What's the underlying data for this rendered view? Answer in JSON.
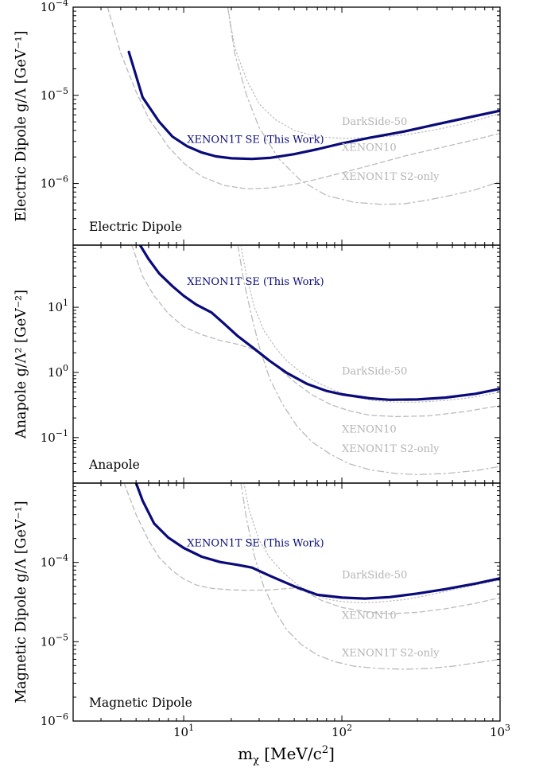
{
  "figure": {
    "xlabel_main": "m",
    "xlabel_sub": "χ",
    "xlabel_unit": " [MeV/c",
    "xlabel_exp": "2",
    "xlabel_end": "]"
  },
  "chart_data": [
    {
      "type": "line",
      "panel_label": "Electric Dipole",
      "ylabel": "Electric Dipole g/Λ [GeV⁻¹]",
      "xscale": "log",
      "yscale": "log",
      "xlim": [
        2,
        1000
      ],
      "ylim": [
        2e-07,
        0.0001
      ],
      "grid": false,
      "x_ticks": [
        {
          "v": 10,
          "e": "1"
        },
        {
          "v": 100,
          "e": "2"
        },
        {
          "v": 1000,
          "e": "3"
        }
      ],
      "y_ticks": [
        {
          "v": 1e-06,
          "e": "−6"
        },
        {
          "v": 1e-05,
          "e": "−5"
        },
        {
          "v": 0.0001,
          "e": "−4"
        }
      ],
      "series": [
        {
          "name": "XENON1T SE (This Work)",
          "style": "thick",
          "color": "#0a0a7a",
          "label_at": [
            10.5,
            2.9e-06
          ],
          "x": [
            4.5,
            5.5,
            7,
            8.5,
            10.5,
            13,
            16,
            20,
            27,
            35,
            50,
            70,
            100,
            150,
            250,
            400,
            600,
            1000
          ],
          "y": [
            3.1e-05,
            9.5e-06,
            5e-06,
            3.4e-06,
            2.65e-06,
            2.25e-06,
            2.03e-06,
            1.93e-06,
            1.9e-06,
            1.95e-06,
            2.15e-06,
            2.45e-06,
            2.85e-06,
            3.3e-06,
            3.9e-06,
            4.7e-06,
            5.5e-06,
            6.7e-06
          ]
        },
        {
          "name": "DarkSide-50",
          "style": "dotted",
          "color": "#bbbbbb",
          "label_at": [
            100,
            4.6e-06
          ],
          "x": [
            19,
            21,
            25,
            30,
            38,
            50,
            70,
            100,
            150,
            250,
            400,
            600,
            1000
          ],
          "y": [
            0.0001,
            3.5e-05,
            1.5e-05,
            8e-06,
            5.3e-06,
            4e-06,
            3.4e-06,
            3.25e-06,
            3.3e-06,
            3.55e-06,
            4.1e-06,
            4.8e-06,
            6.2e-06
          ]
        },
        {
          "name": "XENON10",
          "style": "dashed",
          "color": "#bbbbbb",
          "label_at": [
            100,
            2.35e-06
          ],
          "x": [
            3.3,
            4,
            5,
            6,
            8,
            10,
            13,
            18,
            25,
            35,
            50,
            70,
            100,
            150,
            250,
            400,
            600,
            1000
          ],
          "y": [
            0.0001,
            3e-05,
            1.1e-05,
            5.5e-06,
            2.6e-06,
            1.7e-06,
            1.2e-06,
            9.5e-07,
            8.7e-07,
            8.9e-07,
            9.8e-07,
            1.12e-06,
            1.32e-06,
            1.6e-06,
            2.05e-06,
            2.5e-06,
            2.95e-06,
            3.7e-06
          ]
        },
        {
          "name": "XENON1T S2-only",
          "style": "dashdot",
          "color": "#bbbbbb",
          "label_at": [
            100,
            1.1e-06
          ],
          "x": [
            19,
            21,
            25,
            30,
            40,
            55,
            80,
            120,
            180,
            250,
            350,
            500,
            700,
            1000
          ],
          "y": [
            0.0001,
            3e-05,
            1e-05,
            4.3e-06,
            1.9e-06,
            1.08e-06,
            7.3e-07,
            6.1e-07,
            5.8e-07,
            5.9e-07,
            6.5e-07,
            7.4e-07,
            8.5e-07,
            1.05e-06
          ]
        }
      ]
    },
    {
      "type": "line",
      "panel_label": "Anapole",
      "ylabel": "Anapole g/Λ² [GeV⁻²]",
      "xscale": "log",
      "yscale": "log",
      "xlim": [
        2,
        1000
      ],
      "ylim": [
        0.02,
        90
      ],
      "grid": false,
      "x_ticks": [
        {
          "v": 10,
          "e": "1"
        },
        {
          "v": 100,
          "e": "2"
        },
        {
          "v": 1000,
          "e": "3"
        }
      ],
      "y_ticks": [
        {
          "v": 0.1,
          "e": "−1"
        },
        {
          "v": 1,
          "e": "0"
        },
        {
          "v": 10,
          "e": "1"
        }
      ],
      "series": [
        {
          "name": "XENON1T SE (This Work)",
          "style": "thick",
          "color": "#0a0a7a",
          "label_at": [
            10.5,
            22
          ],
          "x": [
            5.3,
            6,
            7,
            8.5,
            10,
            12,
            15,
            18,
            22,
            28,
            35,
            45,
            60,
            80,
            100,
            150,
            200,
            300,
            450,
            700,
            1000
          ],
          "y": [
            90,
            55,
            33,
            21,
            15,
            11,
            8.3,
            5.6,
            3.6,
            2.3,
            1.5,
            0.98,
            0.67,
            0.52,
            0.46,
            0.4,
            0.38,
            0.385,
            0.41,
            0.47,
            0.56
          ]
        },
        {
          "name": "DarkSide-50",
          "style": "dotted",
          "color": "#bbbbbb",
          "label_at": [
            100,
            0.93
          ],
          "x": [
            23,
            25,
            28,
            32,
            38,
            45,
            55,
            70,
            90,
            120,
            160,
            220,
            300,
            450,
            700,
            1000
          ],
          "y": [
            90,
            30,
            10,
            4.5,
            2.4,
            1.5,
            1.0,
            0.7,
            0.53,
            0.42,
            0.37,
            0.35,
            0.35,
            0.37,
            0.42,
            0.5
          ]
        },
        {
          "name": "XENON10",
          "style": "dashed",
          "color": "#bbbbbb",
          "label_at": [
            100,
            0.12
          ],
          "x": [
            4.7,
            5.5,
            6.5,
            8,
            10,
            13,
            17,
            22,
            27,
            32,
            40,
            50,
            65,
            85,
            110,
            150,
            220,
            350,
            600,
            1000
          ],
          "y": [
            90,
            30,
            15,
            8,
            5,
            3.8,
            3.1,
            2.7,
            2.3,
            1.8,
            1.15,
            0.72,
            0.45,
            0.32,
            0.26,
            0.22,
            0.21,
            0.215,
            0.25,
            0.31
          ]
        },
        {
          "name": "XENON1T S2-only",
          "style": "dashdot",
          "color": "#bbbbbb",
          "label_at": [
            100,
            0.06
          ],
          "x": [
            22,
            24,
            27,
            30,
            35,
            42,
            52,
            65,
            85,
            110,
            150,
            220,
            300,
            450,
            700,
            1000
          ],
          "y": [
            90,
            25,
            7,
            2.5,
            0.8,
            0.33,
            0.15,
            0.085,
            0.055,
            0.04,
            0.032,
            0.028,
            0.027,
            0.028,
            0.031,
            0.036
          ]
        }
      ]
    },
    {
      "type": "line",
      "panel_label": "Magnetic Dipole",
      "ylabel": "Magnetic Dipole g/Λ [GeV⁻¹]",
      "xscale": "log",
      "yscale": "log",
      "xlim": [
        2,
        1000
      ],
      "ylim": [
        1e-06,
        0.001
      ],
      "grid": false,
      "x_ticks": [
        {
          "v": 10,
          "e": "1"
        },
        {
          "v": 100,
          "e": "2"
        },
        {
          "v": 1000,
          "e": "3"
        }
      ],
      "y_ticks": [
        {
          "v": 1e-06,
          "e": "−6"
        },
        {
          "v": 1e-05,
          "e": "−5"
        },
        {
          "v": 0.0001,
          "e": "−4"
        }
      ],
      "series": [
        {
          "name": "XENON1T SE (This Work)",
          "style": "thick",
          "color": "#0a0a7a",
          "label_at": [
            10.5,
            0.00016
          ],
          "x": [
            5,
            5.5,
            6.5,
            8,
            10,
            13,
            17,
            22,
            27,
            35,
            50,
            70,
            100,
            140,
            200,
            300,
            450,
            700,
            1000
          ],
          "y": [
            0.001,
            0.0006,
            0.00031,
            0.000205,
            0.000152,
            0.000118,
            0.000101,
            9.3e-05,
            8.6e-05,
            6.8e-05,
            5e-05,
            3.9e-05,
            3.6e-05,
            3.5e-05,
            3.65e-05,
            4.05e-05,
            4.6e-05,
            5.4e-05,
            6.3e-05
          ]
        },
        {
          "name": "DarkSide-50",
          "style": "dotted",
          "color": "#bbbbbb",
          "label_at": [
            100,
            6.3e-05
          ],
          "x": [
            24,
            26,
            30,
            35,
            42,
            52,
            65,
            80,
            100,
            130,
            170,
            250,
            350,
            500,
            700,
            1000
          ],
          "y": [
            0.001,
            0.00045,
            0.00019,
            0.000115,
            7.6e-05,
            5.3e-05,
            4e-05,
            3.45e-05,
            3.2e-05,
            3.1e-05,
            3.15e-05,
            3.4e-05,
            3.85e-05,
            4.5e-05,
            5.2e-05,
            6e-05
          ]
        },
        {
          "name": "XENON10",
          "style": "dashed",
          "color": "#bbbbbb",
          "label_at": [
            100,
            1.95e-05
          ],
          "x": [
            4.2,
            5,
            6,
            7,
            8.5,
            10,
            12,
            15,
            20,
            25,
            35,
            50,
            60,
            75,
            100,
            150,
            200,
            300,
            450,
            700,
            1000
          ],
          "y": [
            0.001,
            0.0004,
            0.00019,
            0.000115,
            7.8e-05,
            6.2e-05,
            5.2e-05,
            4.7e-05,
            4.5e-05,
            4.45e-05,
            4.5e-05,
            4.75e-05,
            4.2e-05,
            3.3e-05,
            2.7e-05,
            2.35e-05,
            2.25e-05,
            2.35e-05,
            2.6e-05,
            3.05e-05,
            3.6e-05
          ]
        },
        {
          "name": "XENON1T S2-only",
          "style": "dashdot",
          "color": "#bbbbbb",
          "label_at": [
            100,
            6.6e-06
          ],
          "x": [
            23,
            25,
            28,
            32,
            38,
            45,
            55,
            70,
            90,
            120,
            170,
            250,
            350,
            500,
            700,
            1000
          ],
          "y": [
            0.001,
            0.00035,
            0.00012,
            5e-05,
            2.4e-05,
            1.4e-05,
            9.3e-06,
            6.8e-06,
            5.6e-06,
            4.9e-06,
            4.6e-06,
            4.5e-06,
            4.6e-06,
            4.9e-06,
            5.4e-06,
            6e-06
          ]
        }
      ]
    }
  ]
}
